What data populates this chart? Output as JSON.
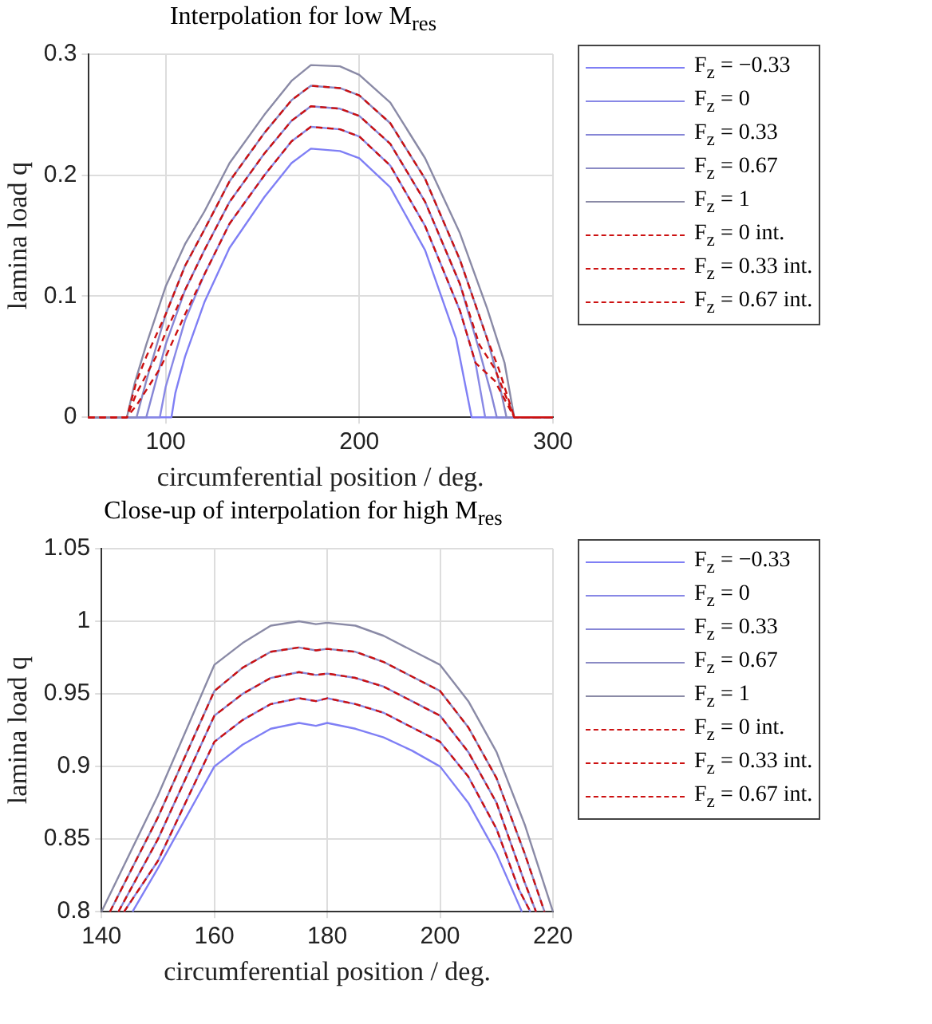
{
  "chart_data": [
    {
      "type": "line",
      "title": "Interpolation for low M$_{res}$",
      "xlabel": "circumferential position / deg.",
      "ylabel": "lamina load q",
      "xlim": [
        60,
        300
      ],
      "ylim": [
        0,
        0.3
      ],
      "xticks": [
        100,
        200,
        300
      ],
      "yticks": [
        0,
        0.1,
        0.2,
        0.3
      ],
      "grid": true,
      "legend": "right",
      "marker": "none",
      "series": [
        {
          "name": "F$_{z}$ = −0.33",
          "color": "#7f7ff5",
          "line_style": "solid",
          "x": [
            60,
            103,
            105,
            110,
            120,
            133,
            151,
            165,
            175,
            190,
            200,
            216,
            234,
            250,
            258,
            300
          ],
          "values": [
            0,
            0,
            0.02,
            0.05,
            0.095,
            0.14,
            0.182,
            0.21,
            0.222,
            0.22,
            0.214,
            0.19,
            0.138,
            0.065,
            0,
            0
          ]
        },
        {
          "name": "F$_{z}$ = 0",
          "color": "#8888e6",
          "line_style": "solid",
          "x": [
            60,
            97,
            100,
            110,
            120,
            133,
            151,
            165,
            175,
            190,
            200,
            216,
            234,
            252,
            260,
            265,
            300
          ],
          "values": [
            0,
            0,
            0.025,
            0.08,
            0.118,
            0.16,
            0.2,
            0.228,
            0.24,
            0.238,
            0.232,
            0.208,
            0.158,
            0.088,
            0.045,
            0,
            0
          ]
        },
        {
          "name": "F$_{z}$ = 0.33",
          "color": "#8686d6",
          "line_style": "solid",
          "x": [
            60,
            90,
            95,
            100,
            110,
            120,
            133,
            151,
            165,
            175,
            190,
            200,
            216,
            234,
            252,
            262,
            268,
            271,
            300
          ],
          "values": [
            0,
            0,
            0.03,
            0.06,
            0.105,
            0.138,
            0.178,
            0.218,
            0.245,
            0.257,
            0.255,
            0.249,
            0.226,
            0.178,
            0.11,
            0.055,
            0.02,
            0,
            0
          ]
        },
        {
          "name": "F$_{z}$ = 0.67",
          "color": "#8a8ac4",
          "line_style": "solid",
          "x": [
            60,
            85,
            90,
            100,
            110,
            120,
            133,
            151,
            165,
            175,
            190,
            200,
            216,
            234,
            252,
            266,
            272,
            276,
            300
          ],
          "values": [
            0,
            0,
            0.03,
            0.085,
            0.125,
            0.155,
            0.195,
            0.235,
            0.262,
            0.274,
            0.272,
            0.266,
            0.243,
            0.197,
            0.13,
            0.065,
            0.03,
            0,
            0
          ]
        },
        {
          "name": "F$_{z}$ = 1",
          "color": "#8a8aa6",
          "line_style": "solid",
          "x": [
            60,
            80,
            84,
            90,
            100,
            110,
            120,
            133,
            151,
            165,
            175,
            190,
            200,
            216,
            234,
            252,
            266,
            275,
            280,
            300
          ],
          "values": [
            0,
            0,
            0.028,
            0.06,
            0.108,
            0.143,
            0.17,
            0.21,
            0.25,
            0.278,
            0.291,
            0.29,
            0.283,
            0.26,
            0.214,
            0.152,
            0.09,
            0.045,
            0,
            0
          ]
        },
        {
          "name": "F$_{z}$ = 0 int.",
          "color": "#cc1111",
          "line_style": "dashed",
          "x": [
            60,
            80,
            85,
            97,
            100,
            110,
            120,
            133,
            151,
            165,
            175,
            190,
            200,
            216,
            234,
            252,
            260,
            270,
            280,
            300
          ],
          "values": [
            0,
            0,
            0.01,
            0.04,
            0.05,
            0.085,
            0.118,
            0.16,
            0.2,
            0.228,
            0.24,
            0.238,
            0.232,
            0.208,
            0.158,
            0.088,
            0.045,
            0.03,
            0,
            0
          ]
        },
        {
          "name": "F$_{z}$ = 0.33 int.",
          "color": "#cc1111",
          "line_style": "dashed",
          "x": [
            60,
            80,
            85,
            95,
            100,
            110,
            120,
            133,
            151,
            165,
            175,
            190,
            200,
            216,
            234,
            252,
            262,
            270,
            280,
            300
          ],
          "values": [
            0,
            0,
            0.02,
            0.05,
            0.07,
            0.105,
            0.138,
            0.178,
            0.218,
            0.245,
            0.257,
            0.255,
            0.249,
            0.226,
            0.178,
            0.11,
            0.06,
            0.04,
            0,
            0
          ]
        },
        {
          "name": "F$_{z}$ = 0.67 int.",
          "color": "#cc1111",
          "line_style": "dashed",
          "x": [
            60,
            80,
            85,
            90,
            100,
            110,
            120,
            133,
            151,
            165,
            175,
            190,
            200,
            216,
            234,
            252,
            266,
            272,
            280,
            300
          ],
          "values": [
            0,
            0,
            0.03,
            0.05,
            0.085,
            0.125,
            0.155,
            0.195,
            0.235,
            0.262,
            0.274,
            0.272,
            0.266,
            0.243,
            0.197,
            0.13,
            0.065,
            0.04,
            0,
            0
          ]
        }
      ]
    },
    {
      "type": "line",
      "title": "Close-up of interpolation for high M$_{res}$",
      "xlabel": "circumferential position / deg.",
      "ylabel": "lamina load q",
      "xlim": [
        140,
        220
      ],
      "ylim": [
        0.8,
        1.05
      ],
      "xticks": [
        140,
        160,
        180,
        200,
        220
      ],
      "yticks": [
        0.8,
        0.85,
        0.9,
        0.95,
        1,
        1.05
      ],
      "grid": true,
      "legend": "right",
      "marker": "none",
      "series": [
        {
          "name": "F$_{z}$ = −0.33",
          "color": "#7f7ff5",
          "line_style": "solid",
          "x": [
            145.5,
            150,
            160,
            165,
            170,
            175,
            178,
            180,
            185,
            190,
            195,
            200,
            205,
            210,
            214.5
          ],
          "values": [
            0.8,
            0.83,
            0.9,
            0.915,
            0.926,
            0.93,
            0.928,
            0.93,
            0.926,
            0.92,
            0.911,
            0.9,
            0.875,
            0.84,
            0.8
          ]
        },
        {
          "name": "F$_{z}$ = 0",
          "color": "#8888e6",
          "line_style": "solid",
          "x": [
            144,
            150,
            160,
            165,
            170,
            175,
            178,
            180,
            185,
            190,
            195,
            200,
            205,
            210,
            214,
            216
          ],
          "values": [
            0.8,
            0.835,
            0.917,
            0.932,
            0.943,
            0.947,
            0.945,
            0.947,
            0.943,
            0.937,
            0.927,
            0.917,
            0.893,
            0.857,
            0.815,
            0.8
          ]
        },
        {
          "name": "F$_{z}$ = 0.33",
          "color": "#8686d6",
          "line_style": "solid",
          "x": [
            143,
            150,
            160,
            165,
            170,
            175,
            178,
            180,
            185,
            190,
            195,
            200,
            205,
            210,
            215,
            217
          ],
          "values": [
            0.8,
            0.85,
            0.935,
            0.95,
            0.961,
            0.965,
            0.963,
            0.964,
            0.961,
            0.955,
            0.945,
            0.935,
            0.91,
            0.875,
            0.82,
            0.8
          ]
        },
        {
          "name": "F$_{z}$ = 0.67",
          "color": "#8a8ac4",
          "line_style": "solid",
          "x": [
            141.5,
            150,
            160,
            165,
            170,
            175,
            178,
            180,
            185,
            190,
            195,
            200,
            205,
            210,
            215,
            218.5
          ],
          "values": [
            0.8,
            0.865,
            0.952,
            0.968,
            0.979,
            0.982,
            0.98,
            0.981,
            0.979,
            0.972,
            0.962,
            0.952,
            0.927,
            0.892,
            0.84,
            0.8
          ]
        },
        {
          "name": "F$_{z}$ = 1",
          "color": "#8a8aa6",
          "line_style": "solid",
          "x": [
            140,
            150,
            160,
            165,
            170,
            175,
            178,
            180,
            185,
            190,
            195,
            200,
            205,
            210,
            215,
            220
          ],
          "values": [
            0.8,
            0.88,
            0.97,
            0.985,
            0.997,
            1,
            0.998,
            0.999,
            0.997,
            0.99,
            0.98,
            0.97,
            0.945,
            0.91,
            0.86,
            0.8
          ]
        },
        {
          "name": "F$_{z}$ = 0 int.",
          "color": "#cc1111",
          "line_style": "dashed",
          "x": [
            144,
            150,
            160,
            165,
            170,
            175,
            178,
            180,
            185,
            190,
            195,
            200,
            205,
            210,
            214,
            216
          ],
          "values": [
            0.8,
            0.835,
            0.917,
            0.932,
            0.943,
            0.947,
            0.945,
            0.947,
            0.943,
            0.937,
            0.927,
            0.917,
            0.893,
            0.857,
            0.815,
            0.8
          ]
        },
        {
          "name": "F$_{z}$ = 0.33 int.",
          "color": "#cc1111",
          "line_style": "dashed",
          "x": [
            143,
            150,
            160,
            165,
            170,
            175,
            178,
            180,
            185,
            190,
            195,
            200,
            205,
            210,
            215,
            217
          ],
          "values": [
            0.8,
            0.85,
            0.935,
            0.95,
            0.961,
            0.965,
            0.963,
            0.964,
            0.961,
            0.955,
            0.945,
            0.935,
            0.91,
            0.875,
            0.82,
            0.8
          ]
        },
        {
          "name": "F$_{z}$ = 0.67 int.",
          "color": "#cc1111",
          "line_style": "dashed",
          "x": [
            141.5,
            150,
            160,
            165,
            170,
            175,
            178,
            180,
            185,
            190,
            195,
            200,
            205,
            210,
            215,
            218.5
          ],
          "values": [
            0.8,
            0.865,
            0.952,
            0.968,
            0.979,
            0.982,
            0.98,
            0.981,
            0.979,
            0.972,
            0.962,
            0.952,
            0.927,
            0.892,
            0.84,
            0.8
          ]
        }
      ]
    }
  ]
}
